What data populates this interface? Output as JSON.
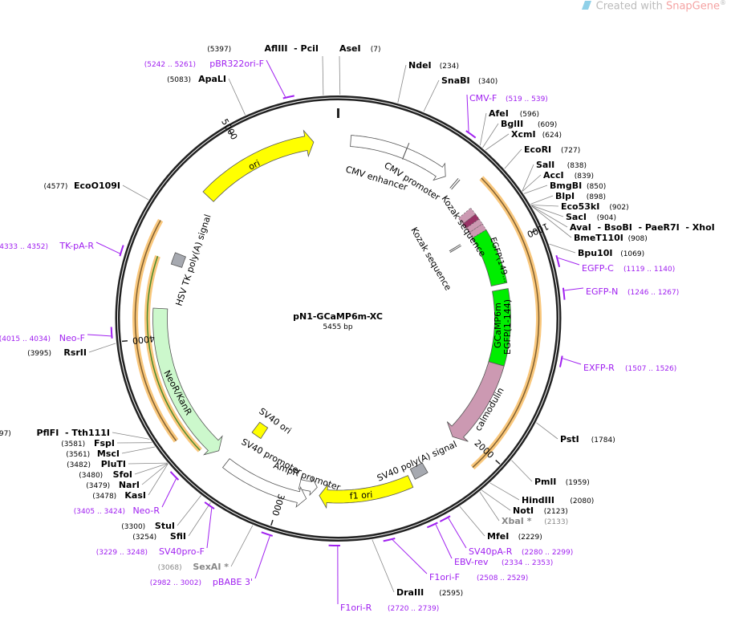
{
  "watermark": {
    "prefix": "Created with",
    "brand": "SnapGene",
    "mark": "®"
  },
  "plasmid": {
    "name": "pN1-GCaMP6m-XC",
    "length_label": "5455 bp",
    "length": 5455
  },
  "ticks": [
    {
      "label": "1000",
      "pos": 1000
    },
    {
      "label": "2000",
      "pos": 2000
    },
    {
      "label": "3000",
      "pos": 3000
    },
    {
      "label": "4000",
      "pos": 4000
    },
    {
      "label": "5000",
      "pos": 5000
    }
  ],
  "sites": [
    {
      "name": "AseI",
      "pos_label": "(7)",
      "pos": 7
    },
    {
      "name": "NdeI",
      "pos_label": "(234)",
      "pos": 234
    },
    {
      "name": "SnaBI",
      "pos_label": "(340)",
      "pos": 340
    },
    {
      "name": "AfeI",
      "pos_label": "(596)",
      "pos": 596
    },
    {
      "name": "BglII",
      "pos_label": "(609)",
      "pos": 609
    },
    {
      "name": "XcmI",
      "pos_label": "(624)",
      "pos": 624
    },
    {
      "name": "EcoRI",
      "pos_label": "(727)",
      "pos": 727
    },
    {
      "name": "SalI",
      "pos_label": "(838)",
      "pos": 838
    },
    {
      "name": "AccI",
      "pos_label": "(839)",
      "pos": 839
    },
    {
      "name": "BmgBI",
      "pos_label": "(850)",
      "pos": 850
    },
    {
      "name": "BlpI",
      "pos_label": "(898)",
      "pos": 898
    },
    {
      "name": "Eco53kI",
      "pos_label": "(902)",
      "pos": 902
    },
    {
      "name": "SacI",
      "pos_label": "(904)",
      "pos": 904
    },
    {
      "name": "AvaI  - BsoBI  - PaeR7I  - XhoI",
      "pos_label": "(907)",
      "pos": 907
    },
    {
      "name": "BmeT110I",
      "pos_label": "(908)",
      "pos": 908
    },
    {
      "name": "Bpu10I",
      "pos_label": "(1069)",
      "pos": 1069
    },
    {
      "name": "PstI",
      "pos_label": "(1784)",
      "pos": 1784
    },
    {
      "name": "PmlI",
      "pos_label": "(1959)",
      "pos": 1959
    },
    {
      "name": "HindIII",
      "pos_label": "(2080)",
      "pos": 2080
    },
    {
      "name": "NotI",
      "pos_label": "(2123)",
      "pos": 2123
    },
    {
      "name": "XbaI *",
      "pos_label": "(2133)",
      "pos": 2133,
      "blocked": true
    },
    {
      "name": "MfeI",
      "pos_label": "(2229)",
      "pos": 2229
    },
    {
      "name": "DraIII",
      "pos_label": "(2595)",
      "pos": 2595
    },
    {
      "name": "SexAI *",
      "pos_label": "(3068)",
      "pos": 3068,
      "blocked": true
    },
    {
      "name": "SfiI",
      "pos_label": "(3254)",
      "pos": 3254
    },
    {
      "name": "StuI",
      "pos_label": "(3300)",
      "pos": 3300
    },
    {
      "name": "KasI",
      "pos_label": "(3478)",
      "pos": 3478
    },
    {
      "name": "NarI",
      "pos_label": "(3479)",
      "pos": 3479
    },
    {
      "name": "SfoI",
      "pos_label": "(3480)",
      "pos": 3480
    },
    {
      "name": "PluTI",
      "pos_label": "(3482)",
      "pos": 3482
    },
    {
      "name": "MscI",
      "pos_label": "(3561)",
      "pos": 3561
    },
    {
      "name": "FspI",
      "pos_label": "(3581)",
      "pos": 3581
    },
    {
      "name": "PflFI  - Tth111I",
      "pos_label": "(3597)",
      "pos": 3597
    },
    {
      "name": "RsrII",
      "pos_label": "(3995)",
      "pos": 3995
    },
    {
      "name": "EcoO109I",
      "pos_label": "(4577)",
      "pos": 4577
    },
    {
      "name": "ApaLI",
      "pos_label": "(5083)",
      "pos": 5083
    },
    {
      "name": "AflIII  - PciI",
      "pos_label": "(5397)",
      "pos": 5397
    }
  ],
  "primers": [
    {
      "name": "CMV-F",
      "range": "(519 .. 539)",
      "start": 519,
      "end": 539
    },
    {
      "name": "EGFP-C",
      "range": "(1119 .. 1140)",
      "start": 1119,
      "end": 1140
    },
    {
      "name": "EGFP-N",
      "range": "(1246 .. 1267)",
      "start": 1246,
      "end": 1267
    },
    {
      "name": "EXFP-R",
      "range": "(1507 .. 1526)",
      "start": 1507,
      "end": 1526
    },
    {
      "name": "SV40pA-R",
      "range": "(2280 .. 2299)",
      "start": 2280,
      "end": 2299
    },
    {
      "name": "EBV-rev",
      "range": "(2334 .. 2353)",
      "start": 2334,
      "end": 2353
    },
    {
      "name": "F1ori-F",
      "range": "(2508 .. 2529)",
      "start": 2508,
      "end": 2529
    },
    {
      "name": "F1ori-R",
      "range": "(2720 .. 2739)",
      "start": 2720,
      "end": 2739
    },
    {
      "name": "pBABE 3'",
      "range": "(2982 .. 3002)",
      "start": 2982,
      "end": 3002
    },
    {
      "name": "SV40pro-F",
      "range": "(3229 .. 3248)",
      "start": 3229,
      "end": 3248
    },
    {
      "name": "Neo-R",
      "range": "(3405 .. 3424)",
      "start": 3405,
      "end": 3424
    },
    {
      "name": "Neo-F",
      "range": "(4015 .. 4034)",
      "start": 4015,
      "end": 4034
    },
    {
      "name": "TK-pA-R",
      "range": "(4333 .. 4352)",
      "start": 4333,
      "end": 4352
    },
    {
      "name": "pBR322ori-F",
      "range": "(5242 .. 5261)",
      "start": 5242,
      "end": 5261
    }
  ],
  "features": [
    {
      "label": "CMV enhancer",
      "start": 61,
      "end": 333,
      "color": "#ffffff",
      "shape": "band"
    },
    {
      "label": "CMV promoter",
      "start": 333,
      "end": 561,
      "color": "#ffffff",
      "shape": "arrow-cw"
    },
    {
      "label": "Kozak sequence",
      "start": 615,
      "end": 625,
      "color": "#ffffff",
      "shape": "tick"
    },
    {
      "label": "Kozak sequence",
      "start": 890,
      "end": 900,
      "color": "#ffffff",
      "shape": "tick-inner"
    },
    {
      "label": "EGFP(149...",
      "start": 894,
      "end": 1182,
      "color": "#00ee00",
      "shape": "band"
    },
    {
      "label": "EGFP(1-144)",
      "start": 1212,
      "end": 1606,
      "color": "#00ee00",
      "shape": "band"
    },
    {
      "label": "calmodulin",
      "start": 1606,
      "end": 2060,
      "color": "#cc99b2",
      "shape": "arrow-cw"
    },
    {
      "label": "GCaMP6m",
      "start": 760,
      "end": 2060,
      "color": "#000000",
      "shape": "label"
    },
    {
      "label": "SV40 poly(A) signal",
      "start": 2270,
      "end": 2340,
      "color": "#a6a9b0",
      "shape": "box"
    },
    {
      "label": "f1 ori",
      "start": 2365,
      "end": 2820,
      "color": "#ffff00",
      "shape": "arrow-cw"
    },
    {
      "label": "AmpR promoter",
      "start": 2835,
      "end": 2925,
      "color": "#ffffff",
      "shape": "arrow-ccw-small"
    },
    {
      "label": "SV40 promoter",
      "start": 2880,
      "end": 3300,
      "color": "#ffffff",
      "shape": "arrow-ccw"
    },
    {
      "label": "SV40 ori",
      "start": 3225,
      "end": 3290,
      "color": "#ffff00",
      "shape": "box-inner"
    },
    {
      "label": "NeoR/KanR",
      "start": 3365,
      "end": 4140,
      "color": "#ccf8cc",
      "shape": "arrow-ccw"
    },
    {
      "label": "HSV TK poly(A) signal",
      "start": 4365,
      "end": 4425,
      "color": "#a6a9b0",
      "shape": "box"
    },
    {
      "label": "ori",
      "start": 4745,
      "end": 5335,
      "color": "#ffff00",
      "shape": "arrow-cw"
    }
  ]
}
